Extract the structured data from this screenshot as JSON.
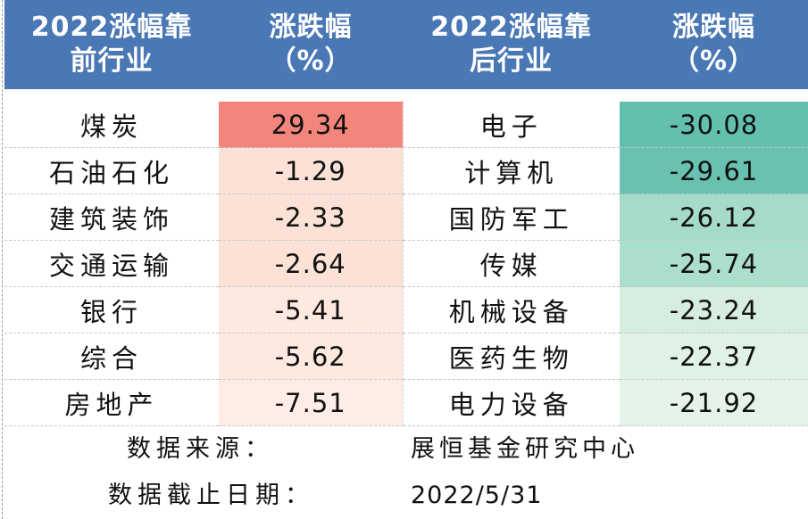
{
  "header": {
    "col1_line1": "2022涨幅靠",
    "col1_line2": "前行业",
    "col2_line1": "涨跌幅",
    "col2_line2": "（%）",
    "col3_line1": "2022涨幅靠",
    "col3_line2": "后行业",
    "col4_line1": "涨跌幅",
    "col4_line2": "（%）"
  },
  "rows": [
    {
      "top_name": "煤炭",
      "top_value": "29.34",
      "top_color": "#f3857a",
      "bottom_name": "电子",
      "bottom_value": "-30.08",
      "bottom_color": "#63bfae"
    },
    {
      "top_name": "石油石化",
      "top_value": "-1.29",
      "top_color": "#fbe1d6",
      "bottom_name": "计算机",
      "bottom_value": "-29.61",
      "bottom_color": "#69c2b1"
    },
    {
      "top_name": "建筑装饰",
      "top_value": "-2.33",
      "top_color": "#fbe1d6",
      "bottom_name": "国防军工",
      "bottom_value": "-26.12",
      "bottom_color": "#a6dbc9"
    },
    {
      "top_name": "交通运输",
      "top_value": "-2.64",
      "top_color": "#fbe1d6",
      "bottom_name": "传媒",
      "bottom_value": "-25.74",
      "bottom_color": "#abdecb"
    },
    {
      "top_name": "银行",
      "top_value": "-5.41",
      "top_color": "#fde9e0",
      "bottom_name": "机械设备",
      "bottom_value": "-23.24",
      "bottom_color": "#d6ede0"
    },
    {
      "top_name": "综合",
      "top_value": "-5.62",
      "top_color": "#fde9e0",
      "bottom_name": "医药生物",
      "bottom_value": "-22.37",
      "bottom_color": "#e0f1e6"
    },
    {
      "top_name": "房地产",
      "top_value": "-7.51",
      "top_color": "#feede6",
      "bottom_name": "电力设备",
      "bottom_value": "-21.92",
      "bottom_color": "#e6f3ea"
    }
  ],
  "footer": {
    "source_label": "数据来源：",
    "source_value": "展恒基金研究中心",
    "date_label": "数据截止日期：",
    "date_value": "2022/5/31"
  },
  "colors": {
    "header_bg": "#4a78b5",
    "header_text": "#ffffff"
  }
}
